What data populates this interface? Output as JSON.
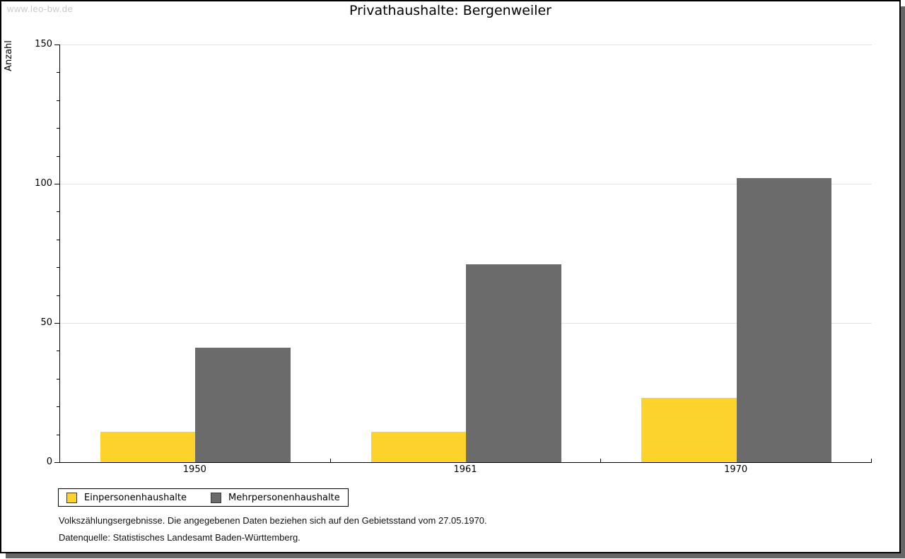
{
  "watermark": "www.leo-bw.de",
  "title": "Privathaushalte: Bergenweiler",
  "chart_data": {
    "type": "bar",
    "title": "Privathaushalte: Bergenweiler",
    "categories": [
      "1950",
      "1961",
      "1970"
    ],
    "series": [
      {
        "name": "Einpersonenhaushalte",
        "color": "#fcd32c",
        "values": [
          11,
          11,
          23
        ]
      },
      {
        "name": "Mehrpersonenhaushalte",
        "color": "#6b6b6b",
        "values": [
          41,
          71,
          102
        ]
      }
    ],
    "xlabel": "",
    "ylabel": "Anzahl",
    "ylim": [
      0,
      150
    ],
    "yticks": [
      0,
      50,
      100,
      150
    ],
    "minor_tick_step": 10,
    "grid": "horizontal-major-lines",
    "legend_position": "bottom-left",
    "bar_group_layout": "grouped-pair-centered"
  },
  "colors": {
    "series_1": "#fcd32c",
    "series_2": "#6b6b6b",
    "gridline": "#e2e2e2",
    "axis": "#000000",
    "watermark_text": "#c9c9c9",
    "frame_shadow": "#666666"
  },
  "footnotes": {
    "line1": "Volkszählungsergebnisse. Die angegebenen Daten beziehen sich auf den Gebietsstand vom 27.05.1970.",
    "line2": "Datenquelle: Statistisches Landesamt Baden-Württemberg."
  }
}
